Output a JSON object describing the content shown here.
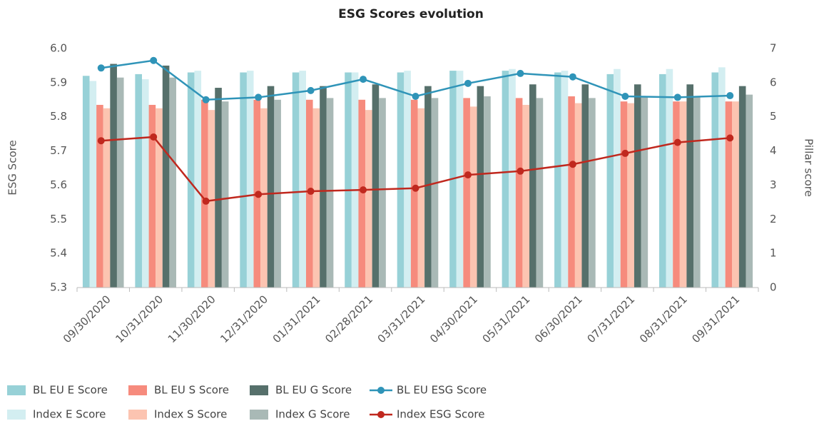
{
  "chart_data": {
    "type": "bar",
    "title": "ESG Scores evolution",
    "y_label": "ESG Score",
    "y2_label": "Pillar score",
    "categories": [
      "09/30/2020",
      "10/31/2020",
      "11/30/2020",
      "12/31/2020",
      "01/31/2021",
      "02/28/2021",
      "03/31/2021",
      "04/30/2021",
      "05/31/2021",
      "06/30/2021",
      "07/31/2021",
      "08/31/2021",
      "09/31/2021"
    ],
    "ylim": [
      5.3,
      6.0
    ],
    "yticks": [
      5.3,
      5.4,
      5.5,
      5.6,
      5.7,
      5.8,
      5.9,
      {
        "value": 6.0,
        "label": "6.0"
      }
    ],
    "y2lim": [
      0,
      7
    ],
    "y2ticks": [
      0,
      1,
      2,
      3,
      4,
      5,
      6,
      7
    ],
    "grid": false,
    "legend": "bottom",
    "series": [
      {
        "name": "BL EU E Score",
        "type": "bar",
        "axis": "y2",
        "color": "#97d1d7",
        "values": [
          6.2,
          6.25,
          6.3,
          6.3,
          6.3,
          6.3,
          6.3,
          6.35,
          6.35,
          6.3,
          6.25,
          6.25,
          6.3
        ]
      },
      {
        "name": "Index E Score",
        "type": "bar",
        "axis": "y2",
        "color": "#d3eef1",
        "values": [
          6.05,
          6.1,
          6.35,
          6.35,
          6.35,
          6.3,
          6.35,
          6.35,
          6.4,
          6.35,
          6.4,
          6.4,
          6.45
        ]
      },
      {
        "name": "BL EU S Score",
        "type": "bar",
        "axis": "y2",
        "color": "#f68b7d",
        "values": [
          5.35,
          5.35,
          5.5,
          5.5,
          5.5,
          5.5,
          5.5,
          5.55,
          5.55,
          5.6,
          5.45,
          5.45,
          5.45
        ]
      },
      {
        "name": "Index S Score",
        "type": "bar",
        "axis": "y2",
        "color": "#fcc4b1",
        "values": [
          5.25,
          5.25,
          5.2,
          5.25,
          5.25,
          5.2,
          5.25,
          5.3,
          5.35,
          5.4,
          5.4,
          5.45,
          5.45
        ]
      },
      {
        "name": "BL EU G Score",
        "type": "bar",
        "axis": "y2",
        "color": "#56706b",
        "values": [
          6.55,
          6.5,
          5.85,
          5.9,
          5.9,
          5.95,
          5.9,
          5.9,
          5.95,
          5.95,
          5.95,
          5.95,
          5.9
        ]
      },
      {
        "name": "Index G Score",
        "type": "bar",
        "axis": "y2",
        "color": "#a9b9b6",
        "values": [
          6.15,
          6.15,
          5.45,
          5.5,
          5.55,
          5.55,
          5.55,
          5.6,
          5.55,
          5.55,
          5.6,
          5.6,
          5.65
        ]
      },
      {
        "name": "BL EU ESG Score",
        "type": "line",
        "axis": "y",
        "color": "#2f94b8",
        "values": [
          5.943,
          5.965,
          5.85,
          5.857,
          5.877,
          5.91,
          5.86,
          5.898,
          5.927,
          5.917,
          5.86,
          5.857,
          5.862
        ]
      },
      {
        "name": "Index ESG Score",
        "type": "line",
        "axis": "y",
        "color": "#c0281e",
        "values": [
          5.73,
          5.741,
          5.553,
          5.573,
          5.582,
          5.586,
          5.591,
          5.63,
          5.641,
          5.661,
          5.693,
          5.725,
          5.738
        ]
      }
    ]
  }
}
